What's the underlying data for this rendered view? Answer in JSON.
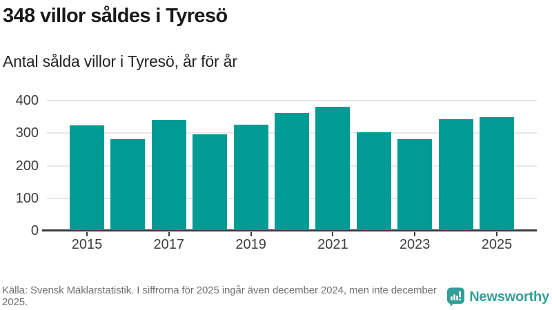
{
  "header": {
    "title": "348 villor såldes i Tyresö",
    "subtitle": "Antal sålda villor i Tyresö, år för år"
  },
  "chart_data": {
    "type": "bar",
    "categories": [
      "2015",
      "2016",
      "2017",
      "2018",
      "2019",
      "2020",
      "2021",
      "2022",
      "2023",
      "2024",
      "2025"
    ],
    "values": [
      321,
      279,
      338,
      294,
      323,
      360,
      379,
      300,
      279,
      341,
      348
    ],
    "title": "348 villor såldes i Tyresö",
    "xlabel": "",
    "ylabel": "",
    "ylim": [
      0,
      400
    ],
    "y_ticks": [
      0,
      100,
      200,
      300,
      400
    ],
    "x_tick_labels": [
      "2015",
      "2017",
      "2019",
      "2021",
      "2023",
      "2025"
    ],
    "grid": true,
    "legend": "none",
    "bar_color": "#009B94"
  },
  "footer": {
    "source_text": "Källa: Svensk Mäklarstatistik. I siffrorna för 2025 ingår även december 2024, men inte december 2025.",
    "brand": "Newsworthy"
  },
  "colors": {
    "bar": "#009B94",
    "brand_teal": "#349F99",
    "title_text": "#191919",
    "axis_text": "#3D3D3D",
    "gridline": "#E7E7E7",
    "axis_line": "#3A3A3A",
    "footer_text": "#707070"
  }
}
